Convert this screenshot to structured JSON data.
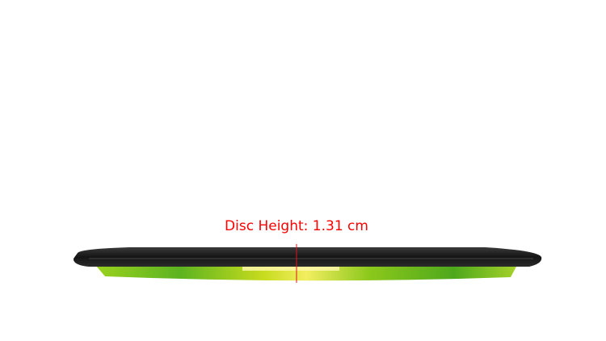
{
  "measurement": {
    "label": "Disc Height: 1.31 cm",
    "line_color": "#e0101a",
    "text_color": "#ff0000"
  },
  "disc": {
    "rim_color": "#1e1e1e",
    "plastic_colors": [
      "#7cc21a",
      "#d8df1c",
      "#4aa81e"
    ]
  }
}
